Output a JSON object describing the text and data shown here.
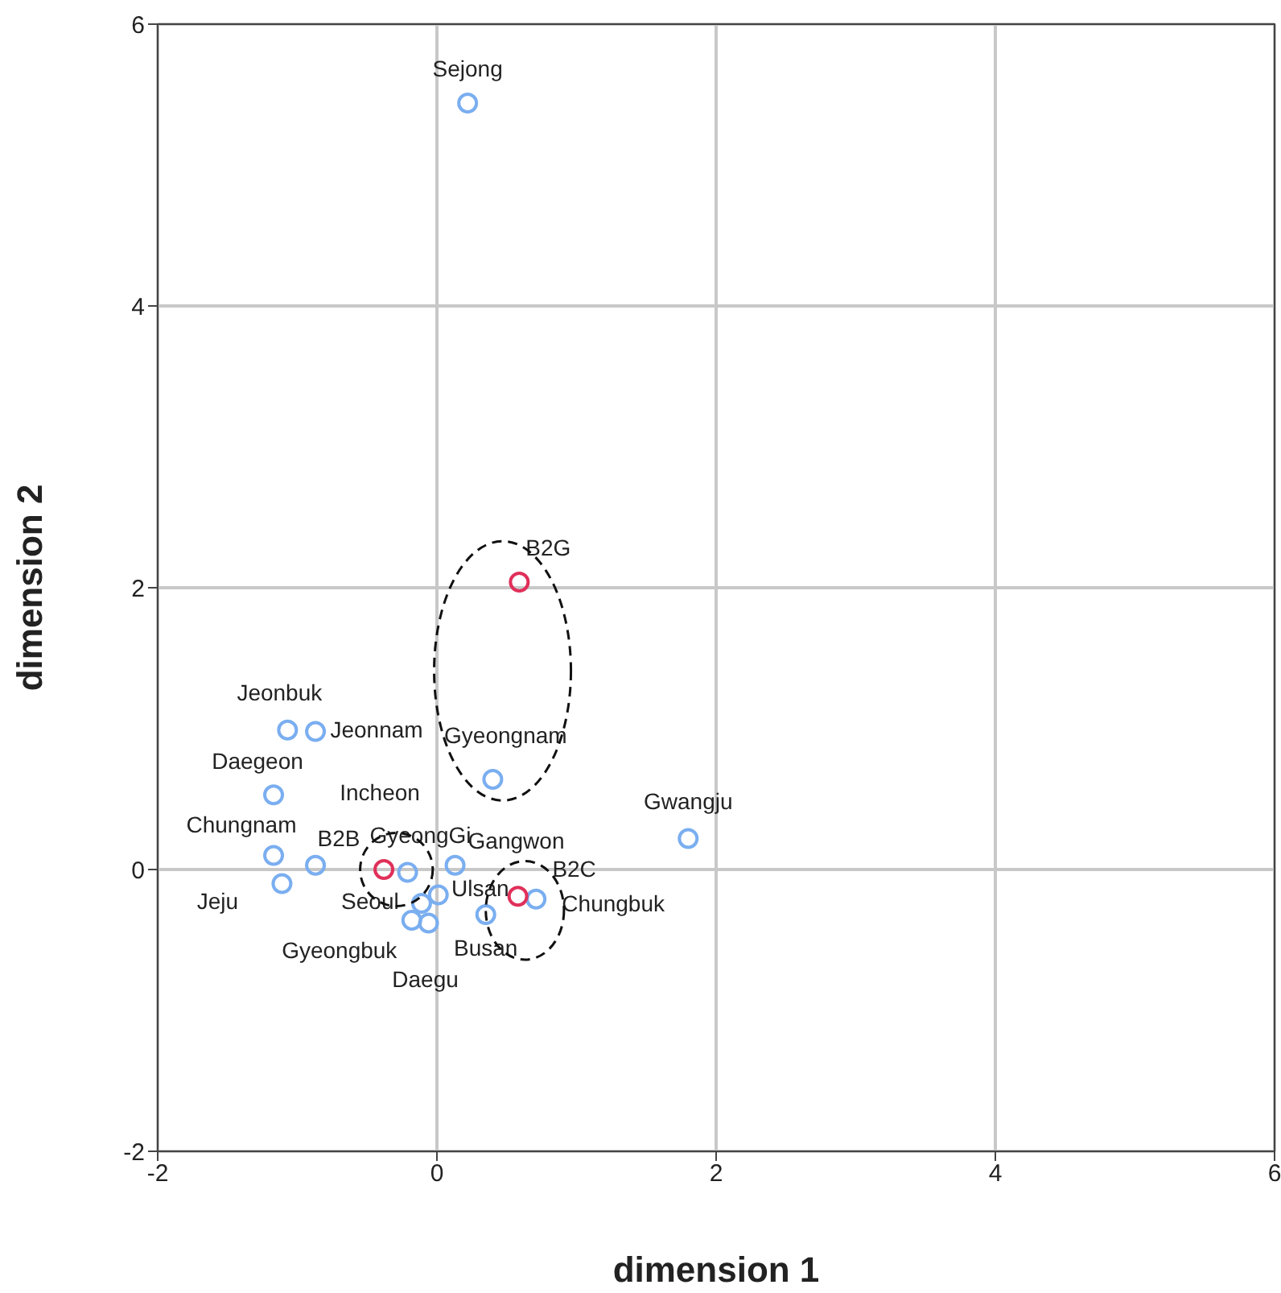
{
  "chart_data": {
    "type": "scatter",
    "xlabel": "dimension 1",
    "ylabel": "dimension 2",
    "xlim": [
      -2,
      6
    ],
    "ylim": [
      -2,
      6
    ],
    "xticks": [
      -2,
      0,
      2,
      4,
      6
    ],
    "yticks": [
      -2,
      0,
      2,
      4,
      6
    ],
    "grid": true,
    "legend": false,
    "marker": "circle",
    "series": [
      {
        "color": "#7aaef0",
        "x": [
          0.22,
          -1.07,
          -0.87,
          -1.17,
          0.4,
          1.8,
          -1.17,
          -0.87,
          -1.11,
          -0.21,
          0.13,
          0.01,
          -0.11,
          -0.18,
          -0.06,
          0.35,
          0.71
        ],
        "values": [
          5.44,
          0.99,
          0.98,
          0.53,
          0.64,
          0.22,
          0.1,
          0.03,
          -0.1,
          -0.02,
          0.03,
          -0.18,
          -0.24,
          -0.36,
          -0.38,
          -0.32,
          -0.21
        ]
      },
      {
        "color": "#e0305a",
        "x": [
          0.59,
          -0.38,
          0.58
        ],
        "values": [
          2.04,
          0.0,
          -0.19
        ]
      }
    ],
    "annotations": [
      {
        "text": "Sejong",
        "x": 0.22,
        "y": 5.44
      },
      {
        "text": "Jeonbuk",
        "x": -1.07,
        "y": 0.99
      },
      {
        "text": "Jeonnam",
        "x": -0.87,
        "y": 0.98
      },
      {
        "text": "Daegeon",
        "x": -1.17,
        "y": 0.53
      },
      {
        "text": "Gyeongnam",
        "x": 0.4,
        "y": 0.64
      },
      {
        "text": "Gwangju",
        "x": 1.8,
        "y": 0.22
      },
      {
        "text": "Chungnam",
        "x": -1.17,
        "y": 0.1
      },
      {
        "text": "Incheon",
        "x": -0.87,
        "y": 0.03
      },
      {
        "text": "Jeju",
        "x": -1.11,
        "y": -0.1
      },
      {
        "text": "GyeongGi",
        "x": -0.21,
        "y": -0.02
      },
      {
        "text": "Gangwon",
        "x": 0.13,
        "y": 0.03
      },
      {
        "text": "Ulsan",
        "x": 0.01,
        "y": -0.18
      },
      {
        "text": "Seoul",
        "x": -0.11,
        "y": -0.24
      },
      {
        "text": "Gyeongbuk",
        "x": -0.18,
        "y": -0.36
      },
      {
        "text": "Daegu",
        "x": -0.06,
        "y": -0.38
      },
      {
        "text": "Busan",
        "x": 0.35,
        "y": -0.32
      },
      {
        "text": "Chungbuk",
        "x": 0.71,
        "y": -0.21
      },
      {
        "text": "B2G",
        "x": 0.59,
        "y": 2.04
      },
      {
        "text": "B2B",
        "x": -0.38,
        "y": 0.0
      },
      {
        "text": "B2C",
        "x": 0.58,
        "y": -0.19
      }
    ]
  }
}
